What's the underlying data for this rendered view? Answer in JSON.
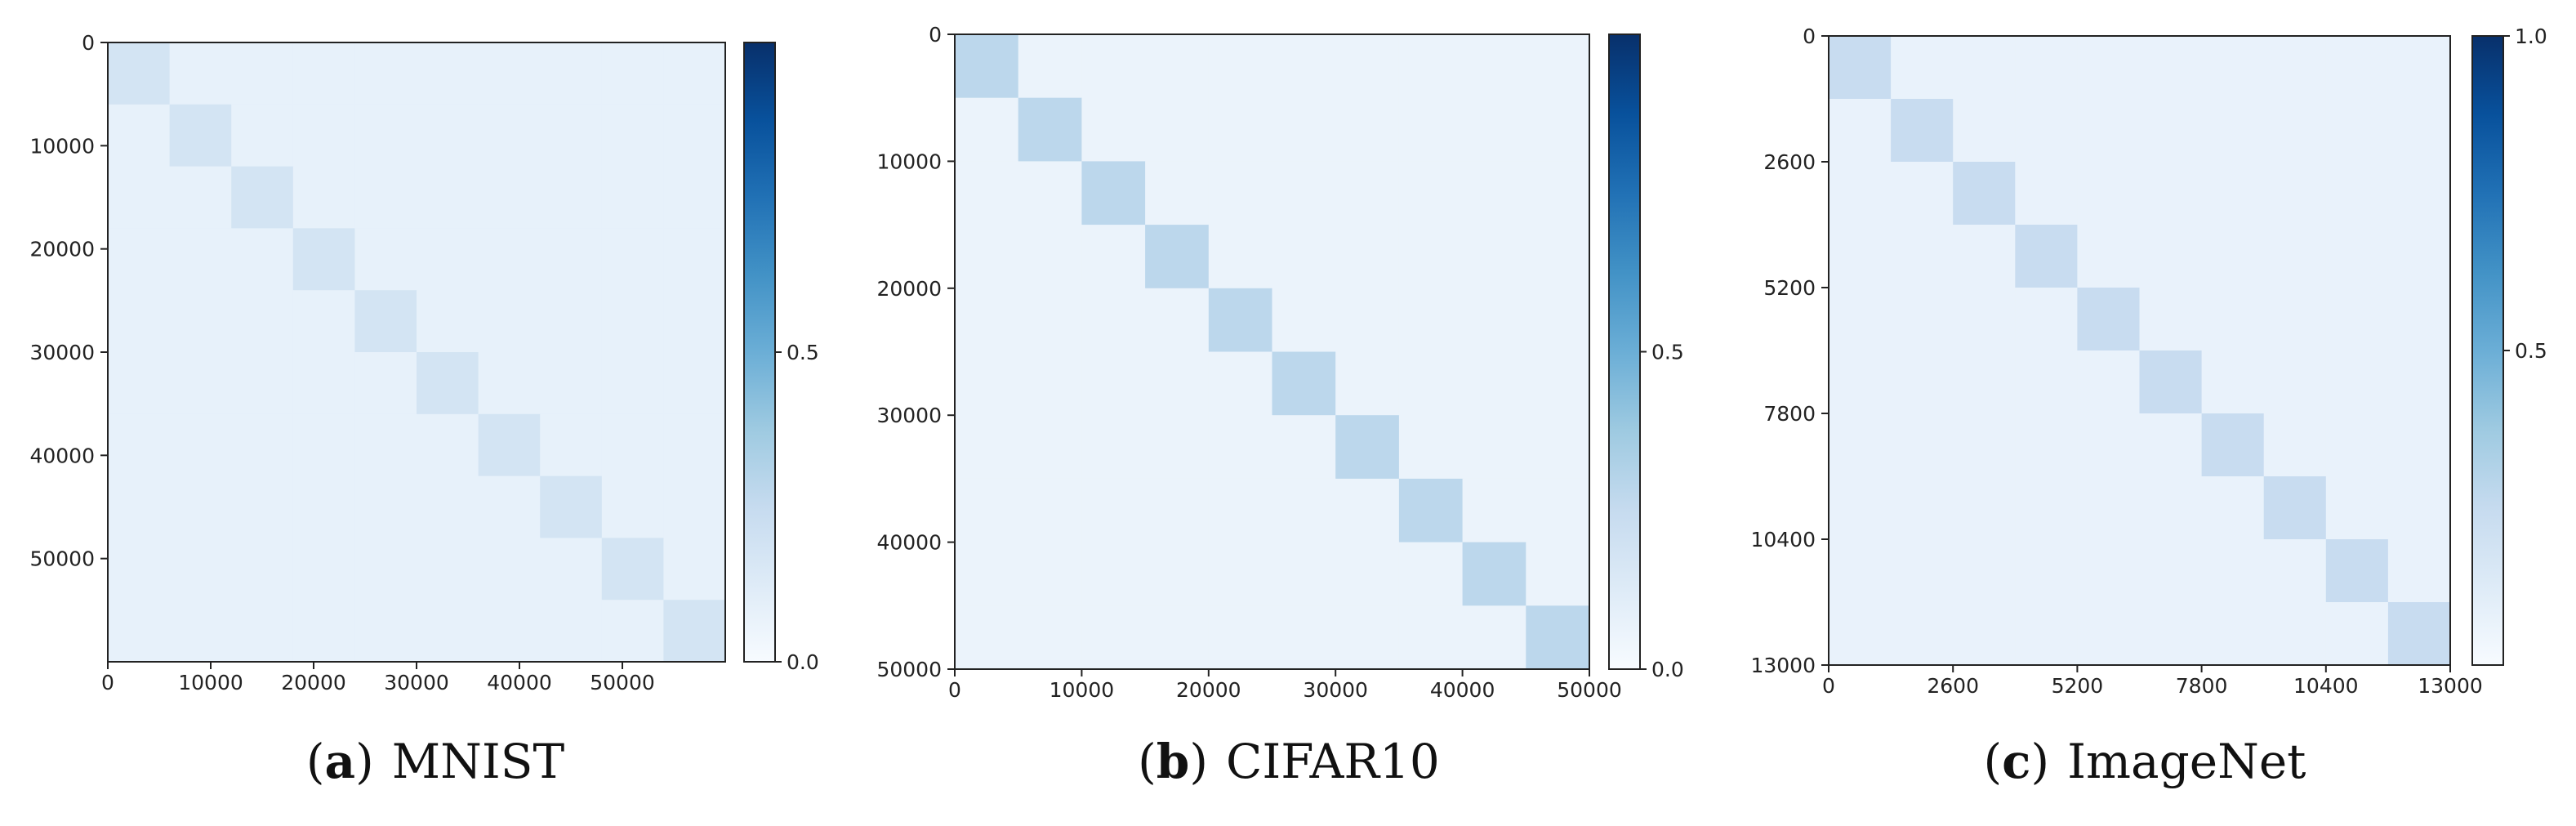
{
  "chart_data": [
    {
      "type": "heatmap",
      "caption_letter": "a",
      "caption_text": "MNIST",
      "x_ticks": [
        "0",
        "10000",
        "20000",
        "30000",
        "40000",
        "50000"
      ],
      "y_ticks": [
        "0",
        "10000",
        "20000",
        "30000",
        "40000",
        "50000"
      ],
      "xlim": [
        0,
        60000
      ],
      "ylim": [
        0,
        60000
      ],
      "n_blocks": 10,
      "diag_value": 0.18,
      "offdiag_value": 0.08,
      "colorbar": {
        "ticks": [
          "0.0",
          "0.5"
        ],
        "range": [
          0,
          1
        ]
      },
      "colormap": "Blues"
    },
    {
      "type": "heatmap",
      "caption_letter": "b",
      "caption_text": "CIFAR10",
      "x_ticks": [
        "0",
        "10000",
        "20000",
        "30000",
        "40000",
        "50000"
      ],
      "y_ticks": [
        "0",
        "10000",
        "20000",
        "30000",
        "40000",
        "50000"
      ],
      "xlim": [
        0,
        50000
      ],
      "ylim": [
        0,
        50000
      ],
      "n_blocks": 10,
      "diag_value": 0.28,
      "offdiag_value": 0.06,
      "colorbar": {
        "ticks": [
          "0.0",
          "0.5"
        ],
        "range": [
          0,
          1
        ]
      },
      "colormap": "Blues"
    },
    {
      "type": "heatmap",
      "caption_letter": "c",
      "caption_text": "ImageNet",
      "x_ticks": [
        "0",
        "2600",
        "5200",
        "7800",
        "10400",
        "13000"
      ],
      "y_ticks": [
        "0",
        "2600",
        "5200",
        "7800",
        "10400",
        "13000"
      ],
      "xlim": [
        0,
        13000
      ],
      "ylim": [
        0,
        13000
      ],
      "n_blocks": 10,
      "diag_value": 0.24,
      "offdiag_value": 0.07,
      "colorbar": {
        "ticks": [
          "0.5",
          "1.0"
        ],
        "range": [
          0,
          1
        ]
      },
      "colormap": "Blues"
    }
  ]
}
